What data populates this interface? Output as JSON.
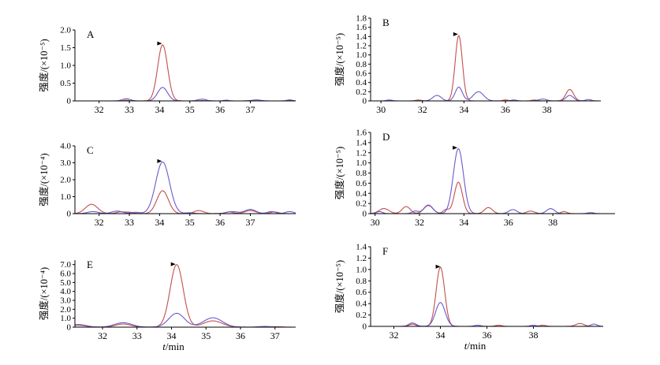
{
  "chart_data": [
    {
      "type": "line",
      "panel_label": "A",
      "ylabel": "强度/(×10⁻⁵)",
      "xlabel": "",
      "xlim": [
        31.2,
        38.5
      ],
      "ylim": [
        0,
        2.0
      ],
      "x_ticks": [
        32,
        33,
        34,
        35,
        36,
        37
      ],
      "y_ticks": [
        "0",
        "0.5",
        "1.0",
        "1.5",
        "2.0"
      ],
      "y_tick_values": [
        0,
        0.5,
        1.0,
        1.5,
        2.0
      ],
      "colors": [
        "#c0504d",
        "#6a5acd"
      ],
      "series": [
        {
          "peaks": [
            [
              34.1,
              1.58,
              0.36
            ],
            [
              32.9,
              0.02,
              0.2
            ],
            [
              35.4,
              0.01,
              0.2
            ],
            [
              37.0,
              0.01,
              0.2
            ],
            [
              38.3,
              0.01,
              0.2
            ]
          ]
        },
        {
          "peaks": [
            [
              34.1,
              0.38,
              0.36
            ],
            [
              32.9,
              0.06,
              0.3
            ],
            [
              35.4,
              0.05,
              0.3
            ],
            [
              36.2,
              0.02,
              0.2
            ],
            [
              37.2,
              0.03,
              0.3
            ],
            [
              38.3,
              0.03,
              0.2
            ]
          ]
        }
      ],
      "marker_at": [
        34.0,
        1.62
      ]
    },
    {
      "type": "line",
      "panel_label": "B",
      "ylabel": "强度/(×10⁻⁵)",
      "xlabel": "",
      "xlim": [
        29.5,
        40.6
      ],
      "ylim": [
        0,
        1.8
      ],
      "x_ticks": [
        30,
        32,
        34,
        36,
        38
      ],
      "y_ticks": [
        "0",
        "0.2",
        "0.4",
        "0.6",
        "0.8",
        "1.0",
        "1.2",
        "1.4",
        "1.6",
        "1.8"
      ],
      "y_tick_values": [
        0,
        0.2,
        0.4,
        0.6,
        0.8,
        1.0,
        1.2,
        1.4,
        1.6,
        1.8
      ],
      "colors": [
        "#c0504d",
        "#6a5acd"
      ],
      "series": [
        {
          "peaks": [
            [
              33.75,
              1.42,
              0.38
            ],
            [
              31.8,
              0.02,
              0.3
            ],
            [
              36.0,
              0.02,
              0.3
            ],
            [
              37.4,
              0.02,
              0.3
            ],
            [
              39.1,
              0.25,
              0.4
            ]
          ]
        },
        {
          "peaks": [
            [
              33.75,
              0.3,
              0.38
            ],
            [
              32.7,
              0.12,
              0.45
            ],
            [
              34.7,
              0.2,
              0.55
            ],
            [
              30.4,
              0.02,
              0.3
            ],
            [
              36.4,
              0.02,
              0.3
            ],
            [
              37.8,
              0.04,
              0.4
            ],
            [
              39.1,
              0.12,
              0.4
            ],
            [
              40.0,
              0.03,
              0.3
            ]
          ]
        }
      ],
      "marker_at": [
        33.6,
        1.45
      ]
    },
    {
      "type": "line",
      "panel_label": "C",
      "ylabel": "强度/(×10⁻⁴)",
      "xlabel": "",
      "xlim": [
        31.2,
        38.5
      ],
      "ylim": [
        0,
        4.0
      ],
      "x_ticks": [
        32,
        33,
        34,
        35,
        36,
        37
      ],
      "y_ticks": [
        "0",
        "1.0",
        "2.0",
        "3.0",
        "4.0"
      ],
      "y_tick_values": [
        0,
        1.0,
        2.0,
        3.0,
        4.0
      ],
      "colors": [
        "#c0504d",
        "#6a5acd"
      ],
      "series": [
        {
          "peaks": [
            [
              34.1,
              1.35,
              0.42
            ],
            [
              31.75,
              0.55,
              0.45
            ],
            [
              32.7,
              0.1,
              0.3
            ],
            [
              33.0,
              0.08,
              0.3
            ],
            [
              35.3,
              0.18,
              0.35
            ],
            [
              36.3,
              0.1,
              0.3
            ],
            [
              37.0,
              0.18,
              0.4
            ],
            [
              37.8,
              0.1,
              0.3
            ]
          ]
        },
        {
          "peaks": [
            [
              34.1,
              3.05,
              0.5
            ],
            [
              31.8,
              0.12,
              0.4
            ],
            [
              32.6,
              0.15,
              0.4
            ],
            [
              33.2,
              0.08,
              0.3
            ],
            [
              35.0,
              0.05,
              0.3
            ],
            [
              36.4,
              0.12,
              0.4
            ],
            [
              37.0,
              0.25,
              0.4
            ],
            [
              37.7,
              0.12,
              0.3
            ],
            [
              38.3,
              0.12,
              0.3
            ]
          ]
        }
      ],
      "marker_at": [
        34.0,
        3.1
      ]
    },
    {
      "type": "line",
      "panel_label": "D",
      "ylabel": "强度/(×10⁻⁵)",
      "xlabel": "",
      "xlim": [
        29.8,
        40.8
      ],
      "ylim": [
        0,
        1.6
      ],
      "x_ticks": [
        30,
        32,
        34,
        36,
        38
      ],
      "y_ticks": [
        "0",
        "0.2",
        "0.4",
        "0.6",
        "0.8",
        "1.0",
        "1.2",
        "1.4",
        "1.6"
      ],
      "y_tick_values": [
        0,
        0.2,
        0.4,
        0.6,
        0.8,
        1.0,
        1.2,
        1.4,
        1.6
      ],
      "colors": [
        "#c0504d",
        "#6a5acd"
      ],
      "series": [
        {
          "peaks": [
            [
              33.75,
              0.62,
              0.4
            ],
            [
              30.4,
              0.1,
              0.5
            ],
            [
              31.4,
              0.14,
              0.4
            ],
            [
              32.4,
              0.16,
              0.45
            ],
            [
              33.2,
              0.08,
              0.3
            ],
            [
              35.1,
              0.12,
              0.4
            ],
            [
              37.0,
              0.05,
              0.4
            ],
            [
              38.5,
              0.04,
              0.3
            ]
          ]
        },
        {
          "peaks": [
            [
              33.75,
              1.28,
              0.5
            ],
            [
              30.2,
              0.04,
              0.3
            ],
            [
              31.8,
              0.05,
              0.3
            ],
            [
              32.4,
              0.17,
              0.45
            ],
            [
              36.2,
              0.08,
              0.4
            ],
            [
              37.9,
              0.1,
              0.4
            ],
            [
              39.7,
              0.02,
              0.3
            ]
          ]
        }
      ],
      "marker_at": [
        33.6,
        1.3
      ]
    },
    {
      "type": "line",
      "panel_label": "E",
      "ylabel": "强度/(×10⁻⁴)",
      "xlabel": "t/min",
      "xlim": [
        31.2,
        37.6
      ],
      "ylim": [
        0,
        7.5
      ],
      "x_ticks": [
        32,
        33,
        34,
        35,
        36,
        37
      ],
      "y_ticks": [
        "0",
        "1.0",
        "2.0",
        "3.0",
        "4.0",
        "5.0",
        "6.0",
        "7.0"
      ],
      "y_tick_values": [
        0,
        1.0,
        2.0,
        3.0,
        4.0,
        5.0,
        6.0,
        7.0
      ],
      "colors": [
        "#c0504d",
        "#6a5acd"
      ],
      "series": [
        {
          "peaks": [
            [
              34.15,
              7.0,
              0.42
            ],
            [
              31.3,
              0.3,
              0.5
            ],
            [
              32.6,
              0.35,
              0.5
            ],
            [
              35.2,
              0.7,
              0.6
            ],
            [
              37.0,
              0.05,
              0.4
            ]
          ]
        },
        {
          "peaks": [
            [
              34.15,
              1.55,
              0.5
            ],
            [
              31.3,
              0.2,
              0.5
            ],
            [
              32.6,
              0.5,
              0.55
            ],
            [
              35.2,
              1.05,
              0.6
            ],
            [
              36.7,
              0.08,
              0.4
            ]
          ]
        }
      ],
      "marker_at": [
        34.05,
        7.05
      ]
    },
    {
      "type": "line",
      "panel_label": "F",
      "ylabel": "强度/(×10⁻⁵)",
      "xlabel": "t/min",
      "xlim": [
        31.0,
        41.0
      ],
      "ylim": [
        0,
        1.4
      ],
      "x_ticks": [
        32,
        34,
        36,
        38
      ],
      "y_ticks": [
        "0",
        "0.2",
        "0.4",
        "0.6",
        "0.8",
        "1.0",
        "1.2",
        "1.4"
      ],
      "y_tick_values": [
        0,
        0.2,
        0.4,
        0.6,
        0.8,
        1.0,
        1.2,
        1.4
      ],
      "colors": [
        "#c0504d",
        "#6a5acd"
      ],
      "series": [
        {
          "peaks": [
            [
              34.0,
              1.04,
              0.4
            ],
            [
              32.8,
              0.04,
              0.3
            ],
            [
              36.5,
              0.02,
              0.3
            ],
            [
              38.4,
              0.02,
              0.3
            ],
            [
              40.0,
              0.05,
              0.4
            ]
          ]
        },
        {
          "peaks": [
            [
              34.0,
              0.42,
              0.45
            ],
            [
              32.8,
              0.06,
              0.35
            ],
            [
              35.6,
              0.02,
              0.3
            ],
            [
              38.0,
              0.02,
              0.3
            ],
            [
              40.6,
              0.04,
              0.3
            ]
          ]
        }
      ],
      "marker_at": [
        33.9,
        1.05
      ]
    }
  ]
}
